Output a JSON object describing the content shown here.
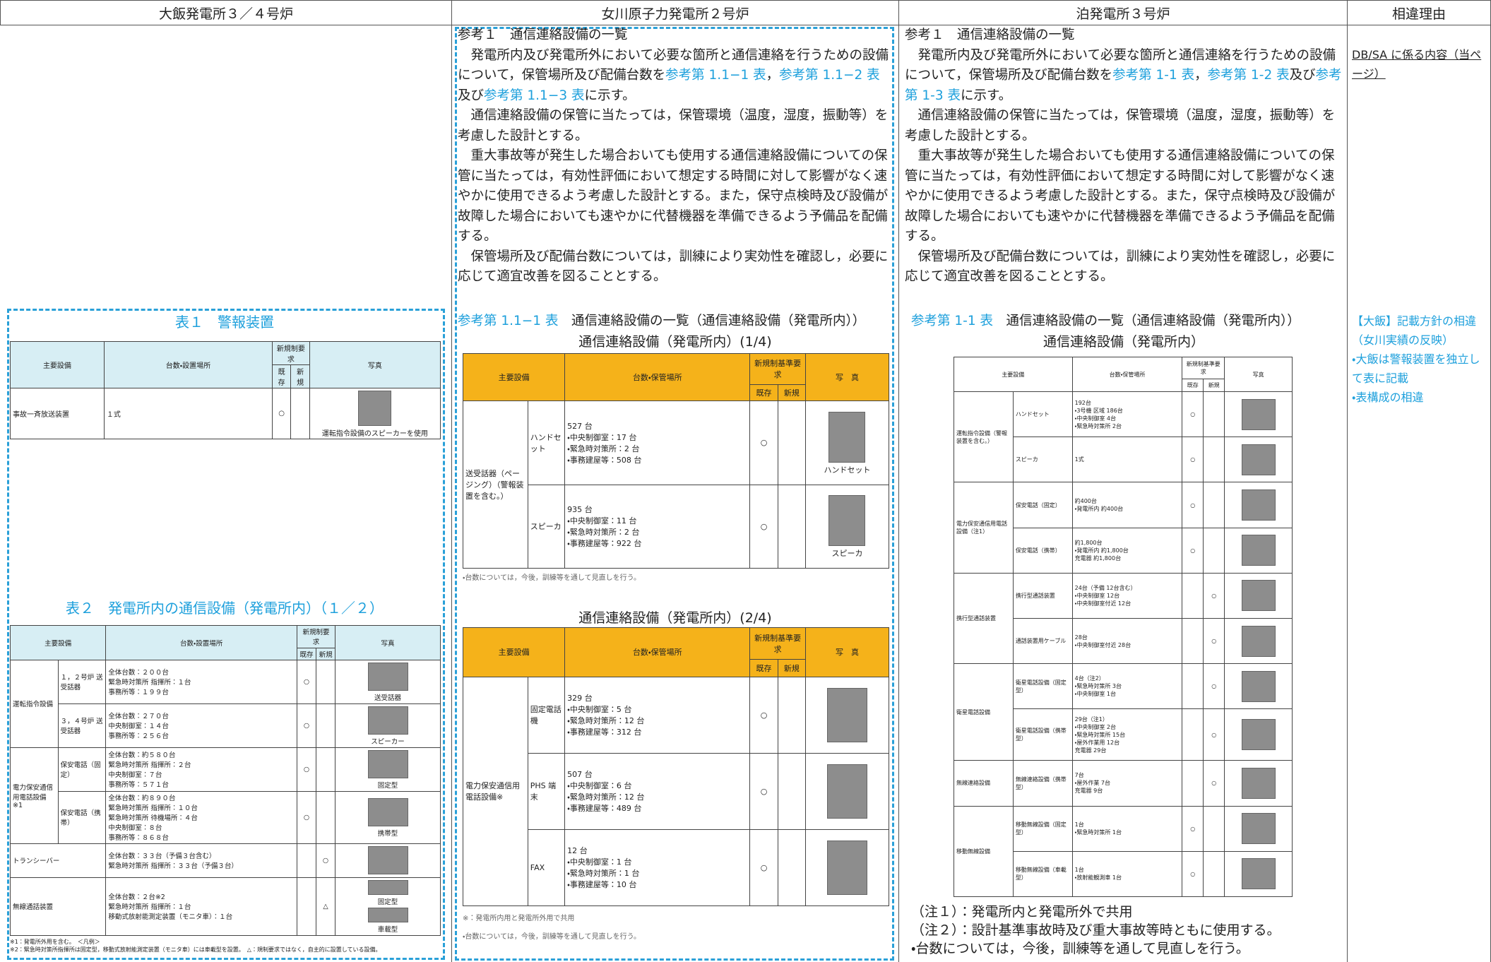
{
  "header": [
    "大飯発電所３／４号炉",
    "女川原子力発電所２号炉",
    "泊発電所３号炉",
    "相違理由"
  ],
  "ohi": {
    "table1": {
      "title": "表１　警報装置",
      "head": [
        "主要設備",
        "台数・設置場所",
        "新規制要求",
        "既存",
        "新規",
        "写真"
      ],
      "groups": [
        {
          "name": "事故一斉放送装置",
          "items": [
            {
              "name": null,
              "count": [
                "１式"
              ],
              "existing": "○",
              "new": null,
              "photo": [
                "運転指令設備のスピーカーを使用"
              ]
            }
          ]
        }
      ]
    },
    "table2": {
      "title": "表２　発電所内の通信設備（発電所内）（１／２）",
      "head": [
        "主要設備",
        "台数・設置場所",
        "新規制要求",
        "既存",
        "新規",
        "写真"
      ],
      "groups": [
        {
          "name": "運転指令設備",
          "items": [
            {
              "name": "１，２号炉 送受話器",
              "count": [
                "全体台数：２００台",
                "緊急時対策所 指揮所：１台",
                "事務所等：１９９台"
              ],
              "existing": "○",
              "new": null,
              "photo": [
                "送受話器"
              ]
            },
            {
              "name": "３，４号炉 送受話器",
              "count": [
                "全体台数：２７０台",
                "中央制御室：１４台",
                "事務所等：２５６台"
              ],
              "existing": "○",
              "new": null,
              "photo": [
                "スピーカー"
              ]
            }
          ]
        },
        {
          "name": "電力保安通信用電話設備※1",
          "items": [
            {
              "name": "保安電話（固定）",
              "count": [
                "全体台数：約５８０台",
                "緊急時対策所 指揮所：２台",
                "中央制御室：７台",
                "事務所等：５７１台"
              ],
              "existing": "○",
              "new": null,
              "photo": [
                "固定型"
              ]
            },
            {
              "name": "保安電話（携帯）",
              "count": [
                "全体台数：約８９０台",
                "緊急時対策所 指揮所：１０台",
                "緊急時対策所 待機場所：４台",
                "中央制御室：８台",
                "事務所等：８６８台"
              ],
              "existing": "○",
              "new": null,
              "photo": [
                "携帯型"
              ]
            }
          ]
        },
        {
          "name": "トランシーバー",
          "items": [
            {
              "name": null,
              "count": [
                "全体台数：３３台（予備３台含む）",
                "緊急時対策所 指揮所：３３台（予備３台）"
              ],
              "existing": null,
              "new": "○",
              "photo": []
            }
          ]
        },
        {
          "name": "無線通話装置",
          "items": [
            {
              "name": null,
              "count": [
                "全体台数：２台※2",
                "緊急時対策所 指揮所：１台",
                "移動式放射能測定装置（モニタ車）：１台"
              ],
              "existing": null,
              "new": "△",
              "photo": [
                "固定型",
                "車載型"
              ]
            }
          ]
        }
      ],
      "notes": [
        "※1：発電所外用を含む。　＜凡例＞",
        "※2：緊急時対策所指揮所は固定型，移動式放射能測定装置（モニタ車）には車載型を設置。　△：規制要求ではなく，自主的に設置している設備。"
      ]
    }
  },
  "onagawa": {
    "paragraphs": [
      [
        "参考１　通信連絡設備の一覧"
      ],
      [
        "　発電所内及び発電所外において必要な箇所と通信連絡を行うための設備について，保管場所及び配備台数を",
        {
          "text": "参考第 1.1−1 表",
          "color": "#1ea0dc"
        },
        "，",
        {
          "text": "参考第 1.1−2 表",
          "color": "#1ea0dc"
        },
        "及び",
        {
          "text": "参考第 1.1−3 表",
          "color": "#1ea0dc"
        },
        "に示す。"
      ],
      [
        "　通信連絡設備の保管に当たっては，保管環境（温度，湿度，振動等）を考慮した設計とする。"
      ],
      [
        "　重大事故等が発生した場合おいても使用する通信連絡設備についての保管に当たっては，有効性評価において想定する時間に対して影響がなく速やかに使用できるよう考慮した設計とする。また，保守点検時及び設備が故障した場合においても速やかに代替機器を準備できるよう予備品を配備する。"
      ],
      [
        "　保管場所及び配備台数については，訓練により実効性を確認し，必要に応じて適宜改善を図ることとする。"
      ]
    ],
    "caption": [
      {
        "text": "参考第 1.1−1 表",
        "color": "#1ea0dc"
      },
      "　通信連絡設備の一覧（通信連絡設備（発電所内））"
    ],
    "table1": {
      "title": "通信連絡設備（発電所内）(1/4)",
      "head": [
        "主要設備",
        "台数・保管場所",
        "新規制基準要求",
        "既存",
        "新規",
        "写　真"
      ],
      "groups": [
        {
          "name": "送受話器（ページング）（警報装置を含む。）",
          "items": [
            {
              "name": "ハンドセット",
              "count": [
                "527 台",
                "・中央制御室：17 台",
                "・緊急時対策所：2 台",
                "・事務建屋等：508 台"
              ],
              "existing": "○",
              "new": null,
              "photo": [
                "ハンドセット"
              ]
            },
            {
              "name": "スピーカ",
              "count": [
                "935 台",
                "・中央制御室：11 台",
                "・緊急時対策所：2 台",
                "・事務建屋等：922 台"
              ],
              "existing": "○",
              "new": null,
              "photo": [
                "スピーカ"
              ]
            }
          ]
        }
      ],
      "notes": [
        "・台数については，今後，訓練等を通して見直しを行う。"
      ]
    },
    "table2": {
      "title": "通信連絡設備（発電所内）(2/4)",
      "head": [
        "主要設備",
        "台数・保管場所",
        "新規制基準要求",
        "既存",
        "新規",
        "写　真"
      ],
      "groups": [
        {
          "name": "電力保安通信用電話設備※",
          "items": [
            {
              "name": "固定電話機",
              "count": [
                "329 台",
                "・中央制御室：5 台",
                "・緊急時対策所：12 台",
                "・事務建屋等：312 台"
              ],
              "existing": "○",
              "new": null,
              "photo": []
            },
            {
              "name": "PHS 端末",
              "count": [
                "507 台",
                "・中央制御室：6 台",
                "・緊急時対策所：12 台",
                "・事務建屋等：489 台"
              ],
              "existing": "○",
              "new": null,
              "photo": []
            },
            {
              "name": "FAX",
              "count": [
                "12 台",
                "・中央制御室：1 台",
                "・緊急時対策所：1 台",
                "・事務建屋等：10 台"
              ],
              "existing": "○",
              "new": null,
              "photo": []
            }
          ]
        }
      ],
      "notes": [
        "※：発電所内用と発電所外用で共用",
        "・台数については，今後，訓練等を通して見直しを行う。"
      ]
    }
  },
  "tomari": {
    "paragraphs": [
      [
        "参考１　通信連絡設備の一覧"
      ],
      [
        "　発電所内及び発電所外において必要な箇所と通信連絡を行うための設備について，保管場所及び配備台数を",
        {
          "text": "参考第 1-1 表",
          "color": "#1ea0dc"
        },
        "，",
        {
          "text": "参考第 1-2 表",
          "color": "#1ea0dc"
        },
        "及び",
        {
          "text": "参考第 1-3 表",
          "color": "#1ea0dc"
        },
        "に示す。"
      ],
      [
        "　通信連絡設備の保管に当たっては，保管環境（温度，湿度，振動等）を考慮した設計とする。"
      ],
      [
        "　重大事故等が発生した場合おいても使用する通信連絡設備についての保管に当たっては，有効性評価において想定する時間に対して影響がなく速やかに使用できるよう考慮した設計とする。また，保守点検時及び設備が故障した場合においても速やかに代替機器を準備できるよう予備品を配備する。"
      ],
      [
        "　保管場所及び配備台数については，訓練により実効性を確認し，必要に応じて適宜改善を図ることとする。"
      ]
    ],
    "caption": [
      {
        "text": "参考第 1-1 表",
        "color": "#1ea0dc"
      },
      "　通信連絡設備の一覧（通信連絡設備（発電所内））"
    ],
    "table1": {
      "title": "通信連絡設備（発電所内）",
      "head": [
        "主要設備",
        "台数・保管場所",
        "新規制基準要求",
        "既存",
        "新規",
        "写真"
      ],
      "groups": [
        {
          "name": "運転指令設備（警報装置を含む。）",
          "items": [
            {
              "name": "ハンドセット",
              "count": [
                "192台",
                "・3号機 区域 186台",
                "・中央制御室 4台",
                "・緊急時対策所 2台"
              ],
              "existing": "○",
              "new": null,
              "photo": []
            },
            {
              "name": "スピーカ",
              "count": [
                "1式"
              ],
              "existing": "○",
              "new": null,
              "photo": []
            }
          ]
        },
        {
          "name": "電力保安通信用電話設備（注1）",
          "items": [
            {
              "name": "保安電話（固定）",
              "count": [
                "約400台",
                "・発電所内 約400台"
              ],
              "existing": "○",
              "new": null,
              "photo": []
            },
            {
              "name": "保安電話（携帯）",
              "count": [
                "約1,800台",
                "・発電所内 約1,800台",
                "充電器 約1,800台"
              ],
              "existing": "○",
              "new": null,
              "photo": []
            }
          ]
        },
        {
          "name": "携行型通話装置",
          "items": [
            {
              "name": "携行型通話装置",
              "count": [
                "24台（予備 12台含む）",
                "・中央制御室 12台",
                "・中央制御室付近 12台"
              ],
              "existing": null,
              "new": "○",
              "photo": []
            },
            {
              "name": "通話装置用ケーブル",
              "count": [
                "28台",
                "・中央制御室付近 28台"
              ],
              "existing": null,
              "new": "○",
              "photo": []
            }
          ]
        },
        {
          "name": "衛星電話設備",
          "items": [
            {
              "name": "衛星電話設備（固定型）",
              "count": [
                "4台（注2）",
                "・緊急時対策所 3台",
                "・中央制御室 1台"
              ],
              "existing": null,
              "new": "○",
              "photo": []
            },
            {
              "name": "衛星電話設備（携帯型）",
              "count": [
                "29台（注1）",
                "・中央制御室 2台",
                "・緊急時対策所 15台",
                "・屋外作業用 12台",
                "充電器 29台"
              ],
              "existing": null,
              "new": "○",
              "photo": []
            }
          ]
        },
        {
          "name": "無線連絡設備",
          "items": [
            {
              "name": "無線連絡設備（携帯型）",
              "count": [
                "7台",
                "・屋外作業 7台",
                "充電器 9台"
              ],
              "existing": null,
              "new": "○",
              "photo": []
            }
          ]
        },
        {
          "name": "移動無線設備",
          "items": [
            {
              "name": "移動無線設備（固定型）",
              "count": [
                "1台",
                "・緊急時対策所 1台"
              ],
              "existing": "○",
              "new": null,
              "photo": []
            },
            {
              "name": "移動無線設備（車載型）",
              "count": [
                "1台",
                "・放射能観測車 1台"
              ],
              "existing": "○",
              "new": null,
              "photo": []
            }
          ]
        }
      ]
    },
    "notes": [
      "（注１）：発電所内と発電所外で共用",
      "（注２）：設計基準事故時及び重大事故等時ともに使用する。",
      "・台数については，今後，訓練等を通して見直しを行う。"
    ]
  },
  "reasons": {
    "scope": "DB/SA に係る内容（当ページ）",
    "items": [
      "【大飯】記載方針の相違（女川実績の反映）",
      "・大飯は警報装置を独立して表に記載",
      "・表構成の相違"
    ]
  }
}
